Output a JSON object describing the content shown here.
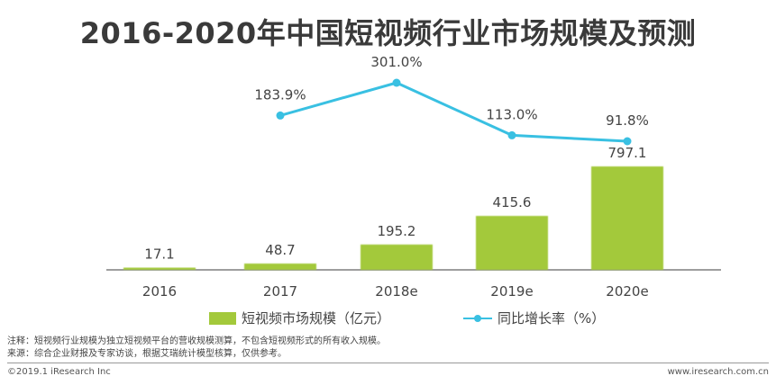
{
  "title": "2016-2020年中国短视频行业市场规模及预测",
  "chart_data": {
    "type": "bar",
    "title": "2016-2020年中国短视频行业市场规模及预测",
    "categories": [
      "2016",
      "2017",
      "2018e",
      "2019e",
      "2020e"
    ],
    "series": [
      {
        "name": "短视频市场规模（亿元）",
        "type": "bar",
        "values": [
          17.1,
          48.7,
          195.2,
          415.6,
          797.1
        ],
        "labels": [
          "17.1",
          "48.7",
          "195.2",
          "415.6",
          "797.1"
        ],
        "color": "#a3c93b"
      },
      {
        "name": "同比增长率（%）",
        "type": "line",
        "values": [
          null,
          183.9,
          301.0,
          113.0,
          91.8
        ],
        "labels": [
          null,
          "183.9%",
          "301.0%",
          "113.0%",
          "91.8%"
        ],
        "color": "#39c0e2"
      }
    ],
    "xlabel": "",
    "ylabel": "",
    "ylim": [
      0,
      800
    ],
    "ylim_secondary": [
      0,
      320
    ],
    "grid": false,
    "legend": "bottom"
  },
  "notes": {
    "line1": "注释：短视频行业规模为独立短视频平台的营收规模测算，不包含短视频形式的所有收入规模。",
    "line2": "来源：综合企业财报及专家访谈，根据艾瑞统计模型核算，仅供参考。"
  },
  "footer": {
    "copyright": "©2019.1 iResearch Inc",
    "website": "www.iresearch.com.cn"
  }
}
